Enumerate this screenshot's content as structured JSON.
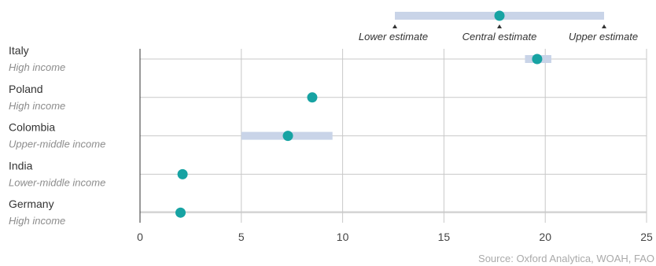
{
  "chart_data": {
    "type": "dot-range",
    "categories": [
      {
        "name": "Italy",
        "group": "High income"
      },
      {
        "name": "Poland",
        "group": "High income"
      },
      {
        "name": "Colombia",
        "group": "Upper-middle income"
      },
      {
        "name": "India",
        "group": "Lower-middle income"
      },
      {
        "name": "Germany",
        "group": "High income"
      }
    ],
    "series": [
      {
        "name": "Central estimate",
        "values": [
          19.6,
          8.5,
          7.3,
          2.1,
          2.0
        ]
      },
      {
        "name": "Lower estimate",
        "values": [
          19.0,
          null,
          5.0,
          null,
          null
        ]
      },
      {
        "name": "Upper estimate",
        "values": [
          20.3,
          null,
          9.5,
          null,
          null
        ]
      }
    ],
    "xlim": [
      0,
      25
    ],
    "xticks": [
      0,
      5,
      10,
      15,
      20,
      25
    ],
    "grid": true,
    "legend": {
      "position": "top-right",
      "labels": [
        "Lower estimate",
        "Central estimate",
        "Upper estimate"
      ]
    },
    "source": "Source: Oxford Analytica, WOAH, FAO",
    "colors": {
      "dot": "#17a3a3",
      "range": "#c9d4e8",
      "grid": "#c8c8c8",
      "axis": "#333333"
    }
  }
}
